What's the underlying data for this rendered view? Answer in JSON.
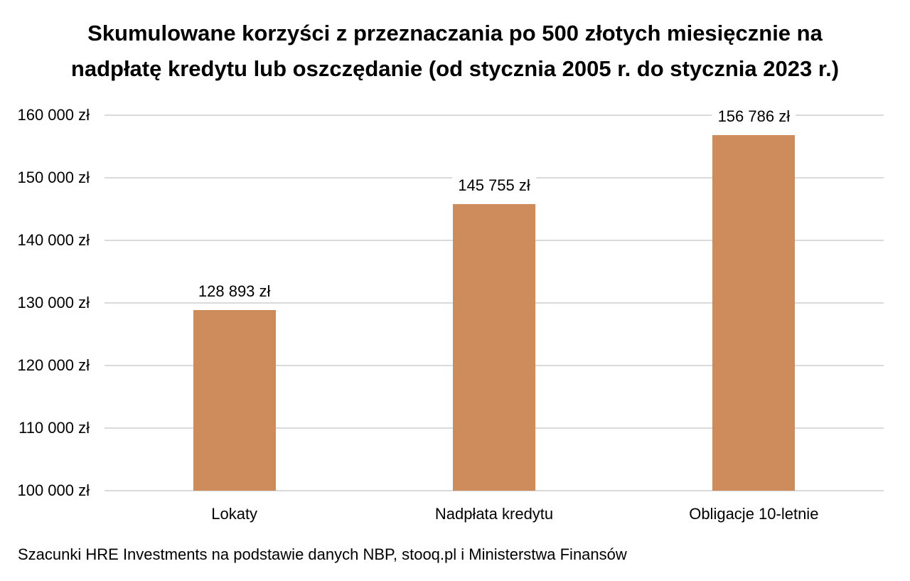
{
  "header": {
    "title_line1": "Skumulowane korzyści z przeznaczania po 500 złotych miesięcznie na",
    "title_line2": "nadpłatę kredytu lub oszczędanie (od stycznia 2005 r. do stycznia 2023 r.)"
  },
  "footer": {
    "text": "Szacunki HRE Investments na podstawie danych NBP, stooq.pl i Ministerstwa Finansów"
  },
  "colors": {
    "bar": "#CE8B5C",
    "gridline": "#DADADA",
    "text": "#000000",
    "background": "#FFFFFF"
  },
  "chart_data": {
    "type": "bar",
    "title": "Skumulowane korzyści z przeznaczania po 500 złotych miesięcznie na nadpłatę kredytu lub oszczędanie (od stycznia 2005 r. do stycznia 2023 r.)",
    "categories": [
      "Lokaty",
      "Nadpłata kredytu",
      "Obligacje 10-letnie"
    ],
    "values": [
      128893,
      145755,
      156786
    ],
    "value_labels": [
      "128 893 zł",
      "145 755 zł",
      "156 786 zł"
    ],
    "xlabel": "",
    "ylabel": "",
    "ylim": [
      100000,
      160000
    ],
    "y_tick_step": 10000,
    "y_ticks": [
      {
        "value": 100000,
        "label": "100 000 zł"
      },
      {
        "value": 110000,
        "label": "110 000 zł"
      },
      {
        "value": 120000,
        "label": "120 000 zł"
      },
      {
        "value": 130000,
        "label": "130 000 zł"
      },
      {
        "value": 140000,
        "label": "140 000 zł"
      },
      {
        "value": 150000,
        "label": "150 000 zł"
      },
      {
        "value": 160000,
        "label": "160 000 zł"
      }
    ],
    "grid": "horizontal",
    "legend": "none",
    "bar_color": "#CE8B5C",
    "source_note": "Szacunki HRE Investments na podstawie danych NBP, stooq.pl i Ministerstwa Finansów"
  }
}
